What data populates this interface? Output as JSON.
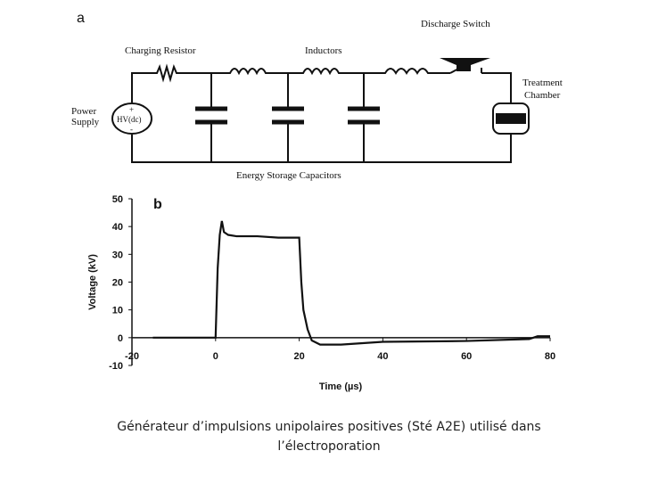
{
  "panel_a": {
    "label": "a",
    "charging_resistor": "Charging Resistor",
    "inductors": "Inductors",
    "discharge_switch": "Discharge Switch",
    "treatment_chamber": [
      "Treatment",
      "Chamber"
    ],
    "power_supply": [
      "Power",
      "Supply"
    ],
    "hv": "HV(dc)",
    "plus": "+",
    "minus": "-",
    "capacitors": "Energy Storage Capacitors"
  },
  "panel_b": {
    "label": "b"
  },
  "chart_data": {
    "type": "line",
    "x_label": "Time (µs)",
    "y_label": "Voltage (kV)",
    "x": [
      -15,
      0,
      0.5,
      1,
      1.5,
      2,
      3,
      5,
      10,
      15,
      20,
      20.5,
      21,
      22,
      23,
      25,
      30,
      40,
      60,
      75,
      77,
      80
    ],
    "series": [
      {
        "name": "Voltage",
        "color": "#111111",
        "values": [
          0,
          0,
          25,
          37,
          42,
          38,
          37,
          36.5,
          36.5,
          36,
          36,
          20,
          10,
          3,
          -1,
          -2.5,
          -2.5,
          -1.5,
          -1.2,
          -0.5,
          0.5,
          0.5
        ]
      }
    ],
    "xlim": [
      -20,
      80
    ],
    "xticks": [
      -20,
      0,
      20,
      40,
      60,
      80
    ],
    "ylim": [
      -10,
      50
    ],
    "yticks": [
      -10,
      0,
      10,
      20,
      30,
      40,
      50
    ],
    "grid": false
  },
  "caption": "Générateur d’impulsions unipolaires positives (Sté A2E) utilisé dans l’électroporation"
}
